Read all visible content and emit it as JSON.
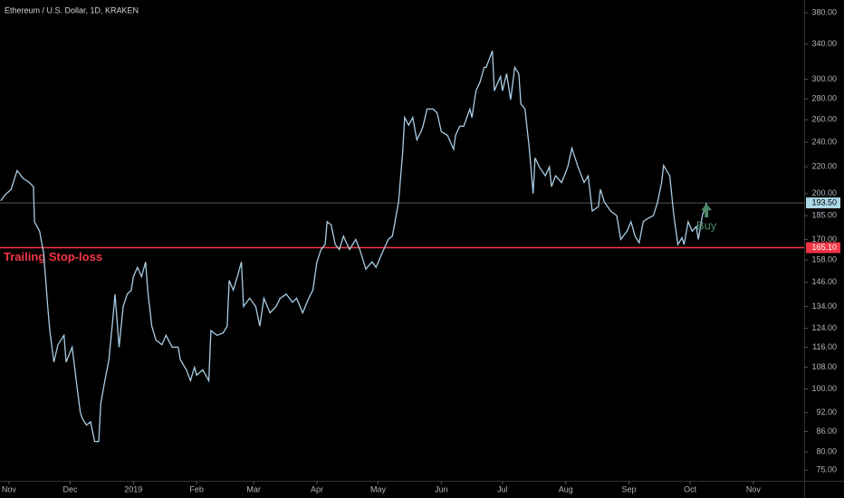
{
  "chart_data": {
    "type": "line",
    "title": "Ethereum / U.S. Dollar, 1D, KRAKEN",
    "color": "#a9cce3",
    "log": true,
    "x": [
      -4,
      -2,
      1,
      4,
      7,
      10,
      12,
      12.5,
      15,
      17,
      19,
      20,
      22,
      24,
      27,
      28,
      31,
      33,
      35,
      36,
      38,
      40,
      42,
      44,
      45,
      47,
      49,
      51,
      52,
      54,
      56,
      58,
      60,
      61,
      63,
      65,
      67,
      68,
      70,
      72,
      75,
      77,
      80,
      83,
      84,
      87,
      89,
      91,
      92,
      95,
      98,
      99,
      102,
      105,
      107,
      108,
      110,
      112,
      114,
      115,
      118,
      121,
      123,
      125,
      128,
      131,
      133,
      136,
      139,
      141,
      144,
      147,
      149,
      151,
      153,
      155,
      156,
      158,
      160,
      162,
      164,
      167,
      170,
      172,
      175,
      178,
      180,
      183,
      186,
      188,
      191,
      193,
      194,
      196,
      198,
      200,
      202,
      203,
      205,
      208,
      210,
      212,
      215,
      218,
      219,
      221,
      223,
      226,
      227,
      229,
      231,
      233,
      234,
      237,
      238,
      241,
      242,
      244,
      246,
      248,
      250,
      251,
      253,
      255,
      257,
      258,
      260,
      263,
      265,
      266,
      268,
      271,
      274,
      276,
      279,
      282,
      284,
      286,
      289,
      290,
      292,
      295,
      298,
      300,
      303,
      305,
      307,
      309,
      311,
      313,
      316,
      318,
      320,
      321,
      324,
      326,
      328,
      330,
      331,
      333,
      335,
      337,
      338,
      340,
      342
    ],
    "values": [
      195,
      199,
      203,
      217,
      211,
      208,
      205,
      181,
      175,
      162,
      134,
      123,
      110,
      117,
      121,
      110,
      116,
      103,
      92,
      90,
      88,
      89,
      83,
      83,
      95,
      103,
      111,
      129,
      140,
      116,
      134,
      140,
      142,
      149,
      154,
      149,
      157,
      142,
      125,
      119,
      117,
      121,
      116,
      116,
      111,
      107,
      103,
      108,
      105,
      107,
      103,
      123,
      121,
      122,
      125,
      147,
      142,
      149,
      157,
      134,
      138,
      134,
      125,
      138,
      131,
      134,
      138,
      140,
      136,
      138,
      131,
      138,
      142,
      157,
      164,
      167,
      181,
      179,
      167,
      164,
      172,
      164,
      170,
      164,
      153,
      157,
      154,
      162,
      170,
      172,
      194,
      231,
      262,
      255,
      262,
      242,
      249,
      254,
      270,
      270,
      266,
      249,
      246,
      234,
      246,
      254,
      254,
      270,
      262,
      288,
      297,
      313,
      313,
      332,
      288,
      303,
      288,
      306,
      279,
      313,
      306,
      275,
      270,
      237,
      200,
      227,
      220,
      213,
      220,
      205,
      213,
      208,
      220,
      235,
      220,
      208,
      213,
      188,
      191,
      203,
      194,
      188,
      185,
      170,
      175,
      181,
      172,
      168,
      181,
      183,
      185,
      194,
      208,
      221,
      213,
      185,
      167,
      171,
      167,
      181,
      175,
      178,
      170,
      185,
      193.5
    ],
    "xlim": [
      -4.4,
      389.9
    ],
    "ylim": [
      72.2,
      397.5
    ],
    "xticks": [
      {
        "value": 0,
        "label": "Nov"
      },
      {
        "value": 30,
        "label": "Dec"
      },
      {
        "value": 61,
        "label": "2019"
      },
      {
        "value": 92,
        "label": "Feb"
      },
      {
        "value": 120,
        "label": "Mar"
      },
      {
        "value": 151,
        "label": "Apr"
      },
      {
        "value": 181,
        "label": "May"
      },
      {
        "value": 212,
        "label": "Jun"
      },
      {
        "value": 242,
        "label": "Jul"
      },
      {
        "value": 273,
        "label": "Aug"
      },
      {
        "value": 304,
        "label": "Sep"
      },
      {
        "value": 334,
        "label": "Oct"
      },
      {
        "value": 365,
        "label": "Nov"
      }
    ],
    "yticks": [
      {
        "value": 75,
        "label": "75.00"
      },
      {
        "value": 80,
        "label": "80.00"
      },
      {
        "value": 86,
        "label": "86.00"
      },
      {
        "value": 92,
        "label": "92.00"
      },
      {
        "value": 100,
        "label": "100.00"
      },
      {
        "value": 108,
        "label": "108.00"
      },
      {
        "value": 116,
        "label": "116.00"
      },
      {
        "value": 124,
        "label": "124.00"
      },
      {
        "value": 134,
        "label": "134.00"
      },
      {
        "value": 146,
        "label": "146.00"
      },
      {
        "value": 158,
        "label": "158.00"
      },
      {
        "value": 170,
        "label": "170.00"
      },
      {
        "value": 185,
        "label": "185.00"
      },
      {
        "value": 200,
        "label": "200.00"
      },
      {
        "value": 220,
        "label": "220.00"
      },
      {
        "value": 240,
        "label": "240.00"
      },
      {
        "value": 260,
        "label": "260.00"
      },
      {
        "value": 280,
        "label": "280.00"
      },
      {
        "value": 300,
        "label": "300.00"
      },
      {
        "value": 340,
        "label": "340.00"
      },
      {
        "value": 380,
        "label": "380.00"
      }
    ],
    "last_price": {
      "value": 193.5,
      "label": "193.50"
    },
    "stop_loss": {
      "text": "Trailing Stop-loss",
      "value": 165.1,
      "label": "165.10",
      "color": "#f23645"
    },
    "buy": {
      "text": "Buy",
      "color": "#4a8a68"
    }
  }
}
